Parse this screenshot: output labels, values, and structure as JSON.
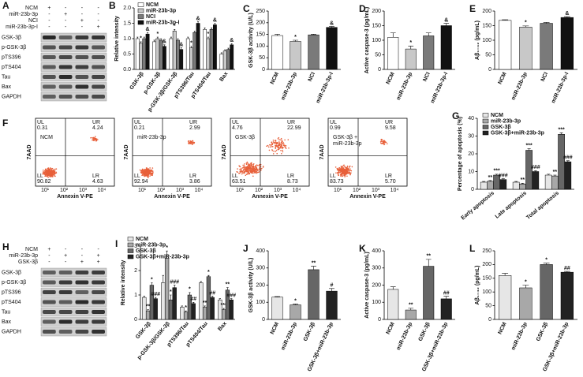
{
  "blots": [
    {
      "letter": "A",
      "conditions": [
        "NCM",
        "miR-23b-3p",
        "NCI",
        "miR-23b-3p-I"
      ],
      "signs": [
        [
          "+",
          "-",
          "-",
          "-"
        ],
        [
          "-",
          "+",
          "-",
          "-"
        ],
        [
          "-",
          "-",
          "+",
          "-"
        ],
        [
          "-",
          "-",
          "-",
          "+"
        ]
      ],
      "proteins": [
        "GSK-3β",
        "p-GSK-3β",
        "pTS396",
        "pTS404",
        "Tau",
        "Bax",
        "GAPDH"
      ]
    },
    {
      "letter": "H",
      "conditions": [
        "NCM",
        "miR-23b-3p",
        "GSK-3β"
      ],
      "signs": [
        [
          "+",
          "-",
          "-",
          "-"
        ],
        [
          "-",
          "+",
          "-",
          "+"
        ],
        [
          "-",
          "-",
          "+",
          "+"
        ]
      ],
      "proteins": [
        "GSK-3β",
        "p-GSK-3β",
        "pTS396",
        "pTS404",
        "Tau",
        "Bax",
        "GAPDH"
      ]
    }
  ],
  "flow": {
    "letter": "F",
    "xlabel": "Annexin V-PE",
    "ylabel": "7AAD",
    "xticks": [
      "10¹",
      "10²",
      "10³",
      "10⁴"
    ],
    "quadrant_names": [
      "UL",
      "UR",
      "LL",
      "LR"
    ],
    "plots": [
      {
        "sample": [
          "NCM"
        ],
        "values": [
          "0.31",
          "4.24",
          "90.82",
          "4.63"
        ]
      },
      {
        "sample": [
          "miR-23b-3p"
        ],
        "values": [
          "0.21",
          "2.99",
          "92.94",
          "3.86"
        ]
      },
      {
        "sample": [
          "GSK-3β"
        ],
        "values": [
          "4.76",
          "22.99",
          "63.51",
          "8.73"
        ]
      },
      {
        "sample": [
          "GSK-3β +",
          "miR-23b-3p"
        ],
        "values": [
          "0.99",
          "9.58",
          "83.73",
          "5.70"
        ]
      }
    ]
  },
  "chart_data": [
    {
      "letter": "B",
      "type": "bar",
      "ylabel": "Relative intensity",
      "categories": [
        "GSK-3β",
        "p-GSK-3β",
        "p-GSK-3β/GSK-3β",
        "pTS396/Tau",
        "pTS404/Tau",
        "Bax"
      ],
      "series": [
        {
          "name": "NCM",
          "color": "#ffffff",
          "values": [
            1.0,
            0.9,
            1.0,
            1.0,
            1.3,
            0.5
          ],
          "errors": [
            0.05,
            0.05,
            0.05,
            0.05,
            0.05,
            0.04
          ],
          "markers": [
            null,
            null,
            null,
            null,
            null,
            null
          ]
        },
        {
          "name": "miR-23b-3p",
          "color": "#c8c8c8",
          "values": [
            0.85,
            1.0,
            1.25,
            0.7,
            1.0,
            0.6
          ],
          "errors": [
            0.05,
            0.05,
            0.05,
            0.05,
            0.05,
            0.04
          ],
          "markers": [
            "*",
            "*",
            "*",
            "*",
            "*",
            null
          ]
        },
        {
          "name": "NCI",
          "color": "#7a7a7a",
          "values": [
            1.0,
            0.95,
            0.95,
            1.2,
            1.3,
            0.65
          ],
          "errors": [
            0.05,
            0.05,
            0.05,
            0.05,
            0.05,
            0.04
          ],
          "markers": [
            null,
            null,
            null,
            null,
            null,
            null
          ]
        },
        {
          "name": "miR-23b-3p-I",
          "color": "#111111",
          "values": [
            1.15,
            0.75,
            0.65,
            1.5,
            1.45,
            0.8
          ],
          "errors": [
            0.05,
            0.05,
            0.05,
            0.05,
            0.05,
            0.04
          ],
          "markers": [
            "&",
            "&",
            "&",
            "&",
            "&",
            "&"
          ]
        }
      ],
      "ylim": [
        0,
        2
      ],
      "yticks": [
        {
          "value": 0,
          "label": "0.0"
        },
        0.5,
        {
          "value": 1,
          "label": "1.0"
        },
        1.5,
        {
          "value": 2,
          "label": "2.0"
        }
      ],
      "legend": "upper-left"
    },
    {
      "letter": "C",
      "type": "bar",
      "ylabel": "GSK-3β activity (U/L)",
      "categories": [
        "NCM",
        "miR-23b-3p",
        "NCI",
        "miR-23b-3p-I"
      ],
      "values": [
        145,
        120,
        148,
        180
      ],
      "errors": [
        5,
        5,
        3,
        4
      ],
      "markers": [
        null,
        "*",
        null,
        "&"
      ],
      "colors": [
        "#ffffff",
        "#c8c8c8",
        "#7a7a7a",
        "#111111"
      ],
      "ylim": [
        0,
        250
      ],
      "yticks": [
        0,
        50,
        100,
        150,
        200,
        250
      ]
    },
    {
      "letter": "D",
      "type": "bar",
      "ylabel": "Active caspase-3 (pg/mL)",
      "categories": [
        "NCM",
        "miR-23b-3p",
        "NCI",
        "miR-23b-3p-I"
      ],
      "values": [
        110,
        70,
        115,
        150
      ],
      "errors": [
        15,
        10,
        10,
        8
      ],
      "markers": [
        null,
        "*",
        null,
        "&"
      ],
      "colors": [
        "#ffffff",
        "#c8c8c8",
        "#7a7a7a",
        "#111111"
      ],
      "ylim": [
        0,
        200
      ],
      "yticks": [
        0,
        50,
        100,
        150,
        200
      ]
    },
    {
      "letter": "E",
      "type": "bar",
      "ylabel": "Aβ₁₋₄₂ (pg/mL)",
      "categories": [
        "NCM",
        "miR-23b-3p",
        "NCI",
        "miR-23b-3p-I"
      ],
      "values": [
        168,
        145,
        158,
        178
      ],
      "errors": [
        2,
        4,
        3,
        3
      ],
      "markers": [
        null,
        "*",
        null,
        "&"
      ],
      "colors": [
        "#ffffff",
        "#c8c8c8",
        "#7a7a7a",
        "#111111"
      ],
      "ylim": [
        0,
        200
      ],
      "yticks": [
        0,
        50,
        100,
        150,
        200
      ]
    },
    {
      "letter": "G",
      "type": "bar",
      "ylabel": "Percentage of apoptosis (%)",
      "categories": [
        "Early apoptosis",
        "Late apoptosis",
        "Total apoptosis"
      ],
      "series": [
        {
          "name": "NCM",
          "color": "#e6e6e6",
          "values": [
            4,
            4,
            8
          ],
          "errors": [
            0.4,
            0.4,
            0.5
          ],
          "markers": [
            null,
            null,
            null
          ]
        },
        {
          "name": "miR-23b-3p",
          "color": "#a8a8a8",
          "values": [
            4.5,
            3,
            7.5
          ],
          "errors": [
            0.4,
            0.4,
            0.5
          ],
          "markers": [
            "**",
            "**",
            "**"
          ]
        },
        {
          "name": "GSK-3β",
          "color": "#666666",
          "values": [
            8,
            22,
            31
          ],
          "errors": [
            0.5,
            0.8,
            0.8
          ],
          "markers": [
            "***",
            "***",
            "***"
          ]
        },
        {
          "name": "GSK-3β+miR-23b-3p",
          "color": "#222222",
          "values": [
            5.5,
            10,
            15.5
          ],
          "errors": [
            0.4,
            0.5,
            0.6
          ],
          "markers": [
            "###",
            "###",
            "###"
          ]
        }
      ],
      "ylim": [
        0,
        40
      ],
      "yticks": [
        0,
        10,
        20,
        30,
        40
      ],
      "legend": "upper-left"
    },
    {
      "letter": "I",
      "type": "bar",
      "ylabel": "Relative intensity",
      "categories": [
        "GSK-3β",
        "p-GSK-3β/GSK-3β",
        "pTS396/Tau",
        "pTS404/Tau",
        "Bax"
      ],
      "series": [
        {
          "name": "NCM",
          "color": "#e6e6e6",
          "values": [
            0.9,
            1.5,
            0.5,
            1.5,
            0.8
          ],
          "errors": [
            0.05,
            0.3,
            0.05,
            0.05,
            0.05
          ],
          "markers": [
            null,
            null,
            null,
            null,
            null
          ]
        },
        {
          "name": "miR-23b-3p",
          "color": "#a8a8a8",
          "values": [
            0.35,
            2.5,
            0.3,
            0.5,
            0.4
          ],
          "errors": [
            0.05,
            0.3,
            0.05,
            0.05,
            0.05
          ],
          "markers": [
            "**",
            "*",
            "*",
            "**",
            "***"
          ]
        },
        {
          "name": "GSK-3β",
          "color": "#666666",
          "values": [
            1.4,
            0.8,
            1.0,
            1.75,
            1.2
          ],
          "errors": [
            0.1,
            0.2,
            0.1,
            0.05,
            0.1
          ],
          "markers": [
            "*",
            "*",
            "*",
            "*",
            "**"
          ]
        },
        {
          "name": "GSK-3β+miR-23b-3p",
          "color": "#222222",
          "values": [
            0.85,
            1.3,
            0.65,
            0.9,
            0.8
          ],
          "errors": [
            0.05,
            0.1,
            0.05,
            0.05,
            0.05
          ],
          "markers": [
            "###",
            "###",
            "##",
            "##",
            "###"
          ]
        }
      ],
      "ylim": [
        0,
        3
      ],
      "yticks": [
        0,
        1,
        2,
        3
      ],
      "legend": "upper-left"
    },
    {
      "letter": "J",
      "type": "bar",
      "ylabel": "GSK-3β activity (U/L)",
      "categories": [
        "NCM",
        "miR-23b-3p",
        "GSK-3β",
        "GSK-3β+miR-23b-3p"
      ],
      "values": [
        130,
        85,
        290,
        165
      ],
      "errors": [
        3,
        5,
        20,
        15
      ],
      "markers": [
        null,
        "*",
        "**",
        "#"
      ],
      "colors": [
        "#e6e6e6",
        "#a8a8a8",
        "#666666",
        "#222222"
      ],
      "ylim": [
        0,
        400
      ],
      "yticks": [
        0,
        100,
        200,
        300,
        400
      ]
    },
    {
      "letter": "K",
      "type": "bar",
      "ylabel": "Active caspase-3 (pg/mL)",
      "categories": [
        "NCM",
        "miR-23b-3p",
        "GSK-3β",
        "GSK-3β+miR-23b-3p"
      ],
      "values": [
        175,
        55,
        310,
        120
      ],
      "errors": [
        15,
        10,
        40,
        15
      ],
      "markers": [
        null,
        "**",
        "**",
        "##"
      ],
      "colors": [
        "#e6e6e6",
        "#a8a8a8",
        "#666666",
        "#222222"
      ],
      "ylim": [
        0,
        400
      ],
      "yticks": [
        0,
        100,
        200,
        300,
        400
      ]
    },
    {
      "letter": "L",
      "type": "bar",
      "ylabel": "Aβ₁₋₄₂ (pg/mL)",
      "categories": [
        "NCM",
        "miR-23b-3p",
        "GSK-3β",
        "GSK-3β+miR-23b-3p"
      ],
      "values": [
        160,
        115,
        200,
        172
      ],
      "errors": [
        8,
        10,
        5,
        3
      ],
      "markers": [
        null,
        "*",
        "*",
        "##"
      ],
      "colors": [
        "#e6e6e6",
        "#a8a8a8",
        "#666666",
        "#222222"
      ],
      "ylim": [
        0,
        250
      ],
      "yticks": [
        0,
        50,
        100,
        150,
        200,
        250
      ]
    }
  ]
}
